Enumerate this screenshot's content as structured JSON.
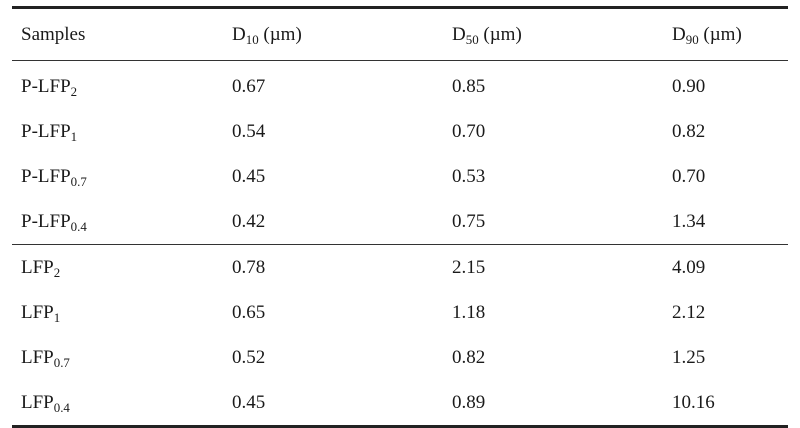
{
  "header": {
    "samples": "Samples",
    "d10": {
      "base": "D",
      "sub": "10",
      "unit": " (µm)"
    },
    "d50": {
      "base": "D",
      "sub": "50",
      "unit": " (µm)"
    },
    "d90": {
      "base": "D",
      "sub": "90",
      "unit": " (µm)"
    }
  },
  "groups": [
    {
      "rows": [
        {
          "name": "P-LFP",
          "sub": "2",
          "d10": "0.67",
          "d50": "0.85",
          "d90": "0.90"
        },
        {
          "name": "P-LFP",
          "sub": "1",
          "d10": "0.54",
          "d50": "0.70",
          "d90": "0.82"
        },
        {
          "name": "P-LFP",
          "sub": "0.7",
          "d10": "0.45",
          "d50": "0.53",
          "d90": "0.70"
        },
        {
          "name": "P-LFP",
          "sub": "0.4",
          "d10": "0.42",
          "d50": "0.75",
          "d90": "1.34"
        }
      ]
    },
    {
      "rows": [
        {
          "name": "LFP",
          "sub": "2",
          "d10": "0.78",
          "d50": "2.15",
          "d90": "4.09"
        },
        {
          "name": "LFP",
          "sub": "1",
          "d10": "0.65",
          "d50": "1.18",
          "d90": "2.12"
        },
        {
          "name": "LFP",
          "sub": "0.7",
          "d10": "0.52",
          "d50": "0.82",
          "d90": "1.25"
        },
        {
          "name": "LFP",
          "sub": "0.4",
          "d10": "0.45",
          "d50": "0.89",
          "d90": "10.16"
        }
      ]
    }
  ]
}
